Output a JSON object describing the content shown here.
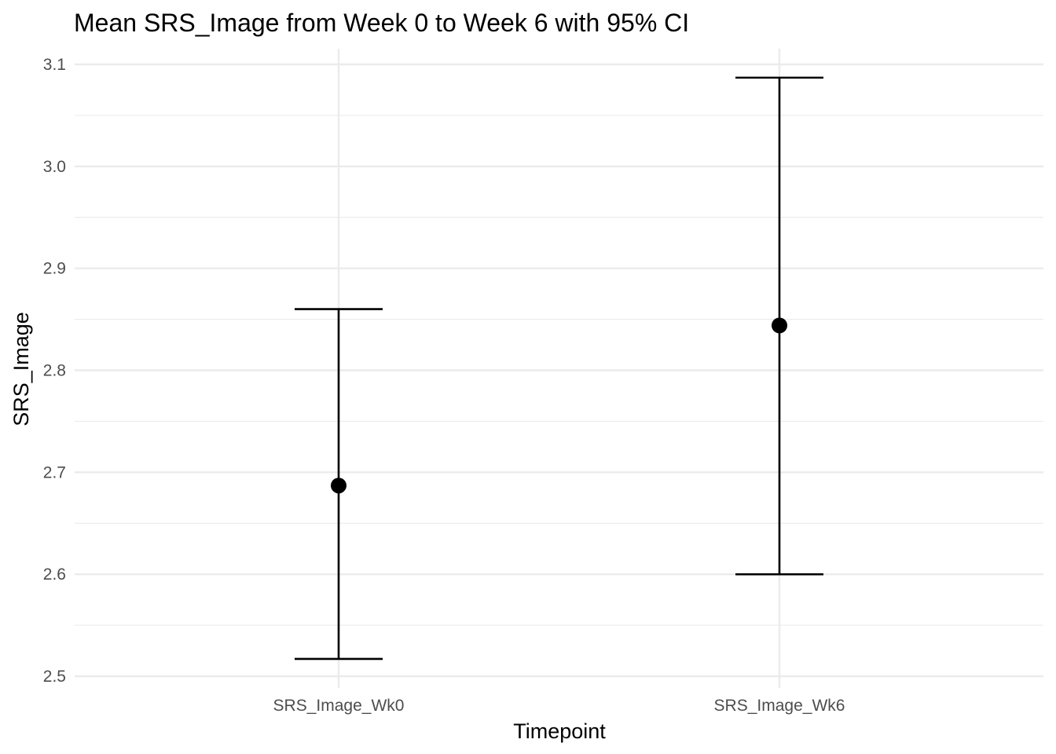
{
  "chart_data": {
    "type": "scatter",
    "title": "Mean SRS_Image from Week 0 to Week 6 with 95% CI",
    "xlabel": "Timepoint",
    "ylabel": "SRS_Image",
    "categories": [
      "SRS_Image_Wk0",
      "SRS_Image_Wk6"
    ],
    "series": [
      {
        "values": [
          2.687,
          2.844
        ],
        "ci_lower": [
          2.517,
          2.6
        ],
        "ci_upper": [
          2.86,
          3.087
        ]
      }
    ],
    "ylim": [
      2.5,
      3.1
    ],
    "yticks": [
      "2.5",
      "2.6",
      "2.7",
      "2.8",
      "2.9",
      "3.0",
      "3.1"
    ],
    "grid": true,
    "legend": "none",
    "colors": {
      "point": "#000000",
      "errorbar": "#000000",
      "grid": "#ebebeb",
      "tick_text": "#4d4d4d"
    }
  }
}
